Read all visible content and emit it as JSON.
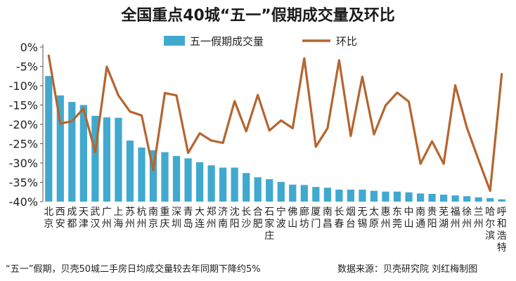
{
  "chart_data": {
    "type": "bar",
    "title": "全国重点40城“五一”假期成交量及环比",
    "categories": [
      "北京",
      "西安",
      "成都",
      "天津",
      "武汉",
      "广州",
      "上海",
      "苏州",
      "杭州",
      "南京",
      "重庆",
      "深圳",
      "青岛",
      "大连",
      "郑州",
      "济南",
      "沈阳",
      "长沙",
      "合肥",
      "石家庄",
      "宁波",
      "佛山",
      "廊坊",
      "厦门",
      "南昌",
      "长春",
      "烟台",
      "无锡",
      "太原",
      "惠州",
      "东莞",
      "中山",
      "南通",
      "贵阳",
      "芜湖",
      "福州",
      "徐州",
      "兰州",
      "哈尔滨",
      "呼和浩特"
    ],
    "series": [
      {
        "name": "五一假期成交量",
        "kind": "bar",
        "color": "#41A9CF",
        "values": [
          7.5,
          12.5,
          14.2,
          15.0,
          17.8,
          18.2,
          18.3,
          24.2,
          26.0,
          26.7,
          27.2,
          28.2,
          28.8,
          29.8,
          30.6,
          31.2,
          31.2,
          32.6,
          33.7,
          34.2,
          34.9,
          35.6,
          35.7,
          36.2,
          36.4,
          36.9,
          36.9,
          36.9,
          37.2,
          37.4,
          37.4,
          37.6,
          37.9,
          38.0,
          38.2,
          38.4,
          38.6,
          38.9,
          39.1,
          39.4
        ]
      },
      {
        "name": "环比",
        "kind": "line",
        "color": "#B5652F",
        "values": [
          -2.2,
          -19.8,
          -19.2,
          -15.9,
          -27.2,
          -5.1,
          -12.5,
          -16.7,
          -17.7,
          -31.9,
          -11.9,
          -12.5,
          -27.4,
          -22.3,
          -24.2,
          -24.8,
          -14.0,
          -21.8,
          -12.4,
          -21.6,
          -19.0,
          -21.0,
          -2.9,
          -25.8,
          -21.0,
          -3.4,
          -23.0,
          -7.7,
          -22.6,
          -15.1,
          -11.8,
          -14.1,
          -30.2,
          -24.4,
          -30.2,
          -9.9,
          -20.9,
          -29.2,
          -37.2,
          -7.0
        ]
      }
    ],
    "y_ticks": [
      "0%",
      "-5%",
      "-10%",
      "-15%",
      "-20%",
      "-25%",
      "-30%",
      "-35%",
      "-40%"
    ],
    "ylim": [
      -40,
      0
    ],
    "legend_position": "top-center",
    "grid": false
  },
  "footnote_left": "“五一”假期，贝壳50城二手房日均成交量较去年同期下降约5%",
  "footnote_right": "数据来源：贝壳研究院  刘红梅制图"
}
